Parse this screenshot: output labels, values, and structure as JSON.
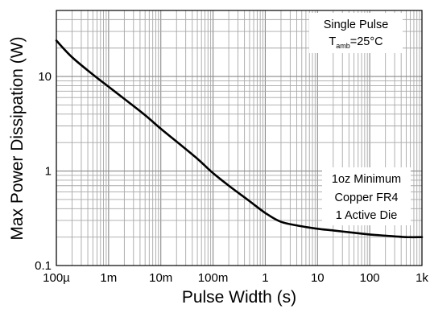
{
  "chart_data": {
    "type": "line",
    "title": "",
    "xlabel": "Pulse Width (s)",
    "ylabel": "Max Power Dissipation (W)",
    "xscale": "log",
    "yscale": "log",
    "xlim": [
      0.0001,
      1000
    ],
    "ylim": [
      0.1,
      50
    ],
    "grid": true,
    "x_tick_labels": [
      "100µ",
      "1m",
      "10m",
      "100m",
      "1",
      "10",
      "100",
      "1k"
    ],
    "y_tick_labels": [
      "0.1",
      "1",
      "10"
    ],
    "x_tick_values": [
      0.0001,
      0.001,
      0.01,
      0.1,
      1,
      10,
      100,
      1000
    ],
    "y_tick_values": [
      0.1,
      1,
      10
    ],
    "series": [
      {
        "name": "",
        "color": "#000000",
        "x": [
          0.0001,
          0.0002,
          0.0005,
          0.001,
          0.002,
          0.005,
          0.01,
          0.02,
          0.05,
          0.1,
          0.2,
          0.5,
          1,
          2,
          5,
          10,
          20,
          50,
          100,
          200,
          500,
          1000
        ],
        "y": [
          24,
          16,
          10.5,
          7.8,
          5.8,
          3.9,
          2.8,
          2.05,
          1.35,
          0.95,
          0.7,
          0.48,
          0.36,
          0.29,
          0.26,
          0.245,
          0.235,
          0.222,
          0.213,
          0.207,
          0.2,
          0.2
        ]
      }
    ],
    "annotations": [
      {
        "id": "pulse",
        "line1": "Single Pulse",
        "line2_main": "T",
        "line2_sub": "amb",
        "line2_rest": "=25°C"
      },
      {
        "id": "board",
        "lines": [
          "1oz Minimum",
          "Copper FR4",
          "1 Active Die"
        ]
      }
    ]
  }
}
